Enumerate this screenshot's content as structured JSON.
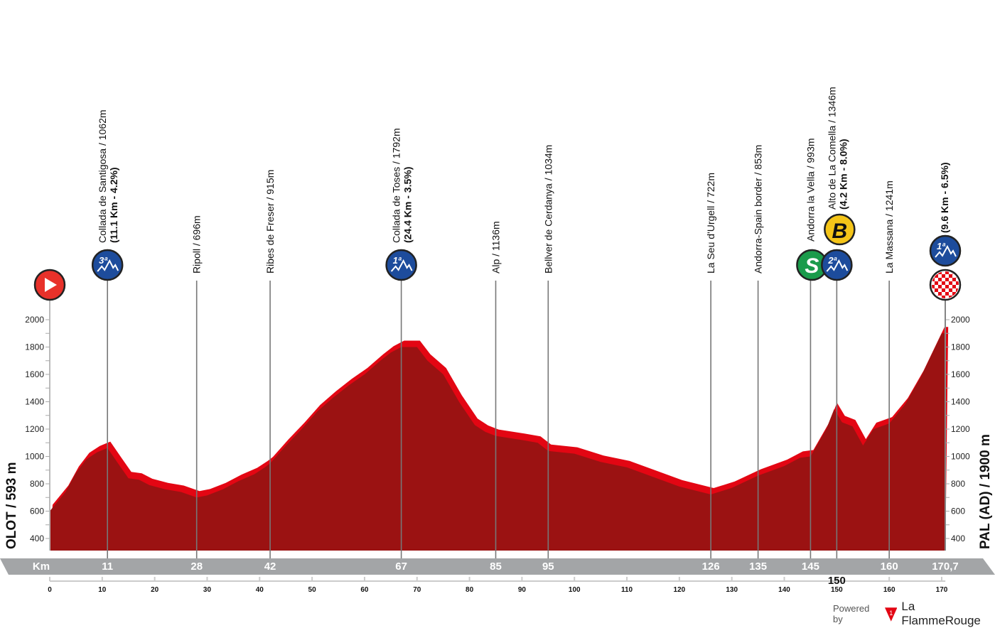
{
  "chart_data": {
    "type": "area",
    "title": "",
    "xlabel": "Km",
    "ylabel": "",
    "xlim": [
      0,
      170.7
    ],
    "ylim": [
      300,
      2000
    ],
    "x_ticks": [
      0,
      10,
      20,
      30,
      40,
      50,
      60,
      70,
      80,
      90,
      100,
      110,
      120,
      130,
      140,
      150,
      160,
      170
    ],
    "y_ticks": [
      400,
      600,
      800,
      1000,
      1200,
      1400,
      1600,
      1800,
      2000
    ],
    "start_label": "OLOT / 593 m",
    "finish_label": "PAL (AD) / 1900 m",
    "total_distance_label": "170,7",
    "profile": {
      "km": [
        0,
        3,
        5,
        7,
        9,
        11,
        13,
        15,
        17,
        19,
        22,
        25,
        28,
        30,
        33,
        36,
        39,
        41,
        42,
        45,
        48,
        51,
        54,
        57,
        60,
        63,
        65,
        67,
        70,
        72,
        75,
        78,
        81,
        83,
        85,
        90,
        93,
        95,
        100,
        105,
        110,
        115,
        120,
        126,
        130,
        135,
        140,
        143,
        145,
        148,
        149.5,
        151,
        153,
        155,
        157,
        160,
        163,
        166,
        169,
        170,
        170.7
      ],
      "elevation_m": [
        600,
        740,
        880,
        980,
        1030,
        1062,
        950,
        840,
        830,
        790,
        760,
        740,
        700,
        715,
        760,
        820,
        870,
        920,
        950,
        1080,
        1200,
        1330,
        1430,
        1520,
        1600,
        1700,
        1760,
        1800,
        1800,
        1700,
        1600,
        1400,
        1230,
        1180,
        1150,
        1120,
        1100,
        1040,
        1020,
        960,
        920,
        850,
        780,
        722,
        770,
        860,
        930,
        990,
        1000,
        1200,
        1346,
        1250,
        1220,
        1080,
        1200,
        1241,
        1380,
        1580,
        1820,
        1900,
        1900
      ]
    },
    "colors": {
      "profile_dark": "#9b1212",
      "profile_light": "#e30613",
      "band": "#a3a5a7",
      "kom": "#1d4c9c",
      "sprint": "#1a9b4b",
      "bonus": "#f5c518",
      "start": "#e8312a"
    },
    "waypoints": [
      {
        "km": 11,
        "km_label": "11",
        "name": "Collada de Santigosa / 1062m",
        "detail": "(11.1 Km - 4.2%)",
        "icon": "kom-3-icon",
        "badge": "3ª"
      },
      {
        "km": 28,
        "km_label": "28",
        "name": "Ripoll / 696m",
        "detail": "",
        "icon": ""
      },
      {
        "km": 42,
        "km_label": "42",
        "name": "Ribes de Freser / 915m",
        "detail": "",
        "icon": ""
      },
      {
        "km": 67,
        "km_label": "67",
        "name": "Collada de Toses / 1792m",
        "detail": "(24.4 Km - 3.5%)",
        "icon": "kom-1-icon",
        "badge": "1ª"
      },
      {
        "km": 85,
        "km_label": "85",
        "name": "Alp / 1136m",
        "detail": "",
        "icon": ""
      },
      {
        "km": 95,
        "km_label": "95",
        "name": "Bellver de Cerdanya / 1034m",
        "detail": "",
        "icon": ""
      },
      {
        "km": 126,
        "km_label": "126",
        "name": "La Seu d'Urgell / 722m",
        "detail": "",
        "icon": ""
      },
      {
        "km": 135,
        "km_label": "135",
        "name": "Andorra-Spain border / 853m",
        "detail": "",
        "icon": ""
      },
      {
        "km": 145,
        "km_label": "145",
        "name": "Andorra la Vella / 993m",
        "detail": "",
        "icon": "sprint-icon",
        "badge": "S"
      },
      {
        "km": 150,
        "km_label": "150",
        "name": "Alto de La Comella / 1346m",
        "detail": "(4.2 Km - 8.0%)",
        "icon": "kom-2-icon",
        "badge": "2ª",
        "bonus": "B"
      },
      {
        "km": 160,
        "km_label": "160",
        "name": "La Massana / 1241m",
        "detail": "",
        "icon": ""
      },
      {
        "km": 170.7,
        "km_label": "170,7",
        "name": "",
        "detail": "(9.6 Km - 6.5%)",
        "icon": "kom-1-icon",
        "badge": "1ª",
        "finish": true
      }
    ]
  },
  "footer": {
    "powered_by": "Powered by",
    "brand": "La FlammeRouge",
    "brand_badge": "1"
  }
}
